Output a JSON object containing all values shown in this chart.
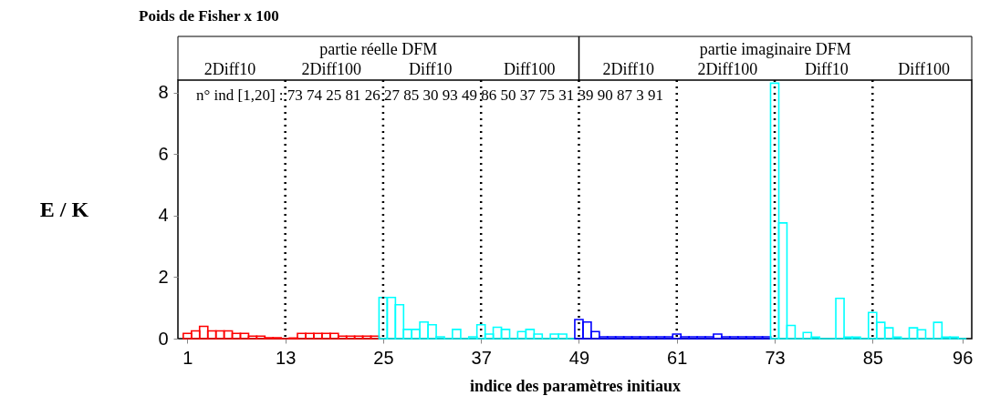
{
  "chart_data": {
    "type": "bar",
    "title": "Poids de Fisher x 100",
    "xlabel": "indice des paramètres initiaux",
    "ylabel": "E / K",
    "annotations": [
      "partie réelle DFM",
      "partie imaginaire DFM",
      "2Diff10",
      "2Diff100",
      "Diff10",
      "Diff100",
      "2Diff10",
      "2Diff100",
      "Diff10",
      "Diff100",
      "n° ind [1,20] : 73 74 25 81 26 27 85 30 93 49 86 50 37 75 31 39 90 87 3 91"
    ],
    "series": [
      {
        "color": "#ff0000",
        "x": [
          1,
          2,
          3,
          4,
          5,
          6,
          7,
          8,
          9,
          10,
          11,
          12,
          13,
          14,
          15,
          16,
          17,
          18,
          19,
          20,
          21,
          22,
          23,
          24
        ],
        "values": [
          0.17,
          0.25,
          0.4,
          0.25,
          0.25,
          0.25,
          0.17,
          0.17,
          0.08,
          0.08,
          0.03,
          0.03,
          0,
          0.02,
          0.17,
          0.17,
          0.17,
          0.17,
          0.17,
          0.08,
          0.08,
          0.08,
          0.08,
          0.08
        ]
      },
      {
        "color": "#00ffff",
        "x": [
          25,
          26,
          27,
          28,
          29,
          30,
          31,
          32,
          33,
          34,
          35,
          36,
          37,
          38,
          39,
          40,
          41,
          42,
          43,
          44,
          45,
          46,
          47,
          48
        ],
        "values": [
          1.34,
          1.34,
          1.1,
          0.3,
          0.3,
          0.54,
          0.45,
          0.06,
          0,
          0.3,
          0,
          0.06,
          0.45,
          0.15,
          0.37,
          0.3,
          0,
          0.23,
          0.3,
          0.15,
          0,
          0.15,
          0.15,
          0
        ]
      },
      {
        "color": "#0000ff",
        "x": [
          49,
          50,
          51,
          52,
          53,
          54,
          55,
          56,
          57,
          58,
          59,
          60,
          61,
          62,
          63,
          64,
          65,
          66,
          67,
          68,
          69,
          70,
          71,
          72
        ],
        "values": [
          0.62,
          0.54,
          0.23,
          0.06,
          0.06,
          0.06,
          0.06,
          0.06,
          0.06,
          0.06,
          0.06,
          0.06,
          0.15,
          0.06,
          0.06,
          0.06,
          0.06,
          0.15,
          0.06,
          0.06,
          0.06,
          0.06,
          0.06,
          0.06
        ]
      },
      {
        "color": "#00ffff",
        "x": [
          73,
          74,
          75,
          76,
          77,
          78,
          79,
          80,
          81,
          82,
          83,
          84,
          85,
          86,
          87,
          88,
          89,
          90,
          91,
          92,
          93,
          94,
          95,
          96
        ],
        "values": [
          8.3,
          3.76,
          0.43,
          0,
          0.2,
          0.05,
          0,
          0,
          1.31,
          0.05,
          0.05,
          0,
          0.85,
          0.53,
          0.35,
          0.05,
          0,
          0.35,
          0.29,
          0,
          0.53,
          0.05,
          0.05,
          0
        ]
      }
    ],
    "xlim": [
      0.4,
      96.6
    ],
    "xticks": [
      1,
      13,
      25,
      37,
      49,
      61,
      73,
      85,
      96
    ],
    "ylim": [
      0,
      8.4
    ],
    "yticks": [
      0,
      2,
      4,
      6,
      8
    ],
    "ref_lines": [
      {
        "axis": "x",
        "value": 13,
        "color": "#000000",
        "line_style": "dotted"
      },
      {
        "axis": "x",
        "value": 25,
        "color": "#000000",
        "line_style": "dotted"
      },
      {
        "axis": "x",
        "value": 37,
        "color": "#000000",
        "line_style": "dotted"
      },
      {
        "axis": "x",
        "value": 49,
        "color": "#000000",
        "line_style": "dotted"
      },
      {
        "axis": "x",
        "value": 61,
        "color": "#000000",
        "line_style": "dotted"
      },
      {
        "axis": "x",
        "value": 73,
        "color": "#000000",
        "line_style": "dotted"
      },
      {
        "axis": "x",
        "value": 85,
        "color": "#000000",
        "line_style": "dotted"
      }
    ],
    "grid": false
  }
}
